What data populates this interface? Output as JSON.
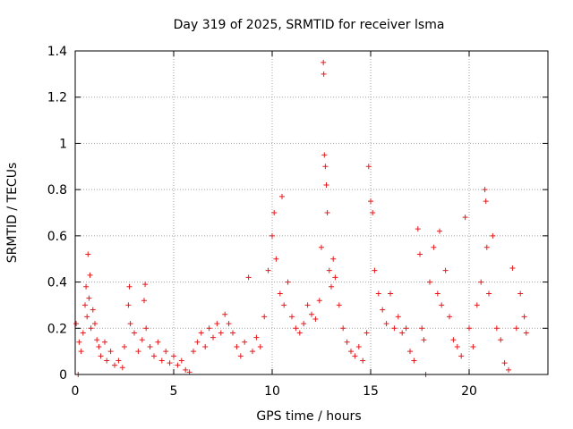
{
  "chart_data": {
    "type": "scatter",
    "title": "Day 319 of 2025, SRMTID for receiver lsma",
    "xlabel": "GPS time / hours",
    "ylabel": "SRMTID / TECUs",
    "xlim": [
      0,
      24
    ],
    "ylim": [
      0,
      1.4
    ],
    "xticks": [
      0,
      5,
      10,
      15,
      20
    ],
    "yticks": [
      0,
      0.2,
      0.4,
      0.6,
      0.8,
      1,
      1.2,
      1.4
    ],
    "ytick_labels": [
      "0",
      "0.2",
      "0.4",
      "0.6",
      "0.8",
      "1",
      "1.2",
      "1.4"
    ],
    "grid": true,
    "marker": "+",
    "series": [
      {
        "name": "SRMTID",
        "color": "#e41a1c",
        "points": [
          [
            0.05,
            0.22
          ],
          [
            0.15,
            0.0
          ],
          [
            0.2,
            0.14
          ],
          [
            0.3,
            0.1
          ],
          [
            0.4,
            0.18
          ],
          [
            0.5,
            0.3
          ],
          [
            0.55,
            0.38
          ],
          [
            0.6,
            0.25
          ],
          [
            0.65,
            0.52
          ],
          [
            0.7,
            0.33
          ],
          [
            0.75,
            0.43
          ],
          [
            0.8,
            0.2
          ],
          [
            0.9,
            0.28
          ],
          [
            1.0,
            0.22
          ],
          [
            1.1,
            0.15
          ],
          [
            1.2,
            0.12
          ],
          [
            1.3,
            0.08
          ],
          [
            1.5,
            0.14
          ],
          [
            1.6,
            0.06
          ],
          [
            1.8,
            0.1
          ],
          [
            2.0,
            0.04
          ],
          [
            2.2,
            0.06
          ],
          [
            2.4,
            0.03
          ],
          [
            2.5,
            0.12
          ],
          [
            2.7,
            0.3
          ],
          [
            2.75,
            0.38
          ],
          [
            2.8,
            0.22
          ],
          [
            3.0,
            0.18
          ],
          [
            3.2,
            0.1
          ],
          [
            3.4,
            0.15
          ],
          [
            3.5,
            0.32
          ],
          [
            3.55,
            0.39
          ],
          [
            3.6,
            0.2
          ],
          [
            3.8,
            0.12
          ],
          [
            4.0,
            0.08
          ],
          [
            4.2,
            0.14
          ],
          [
            4.4,
            0.06
          ],
          [
            4.6,
            0.1
          ],
          [
            4.8,
            0.05
          ],
          [
            5.0,
            0.08
          ],
          [
            5.2,
            0.04
          ],
          [
            5.4,
            0.06
          ],
          [
            5.6,
            0.02
          ],
          [
            5.8,
            0.01
          ],
          [
            6.0,
            0.1
          ],
          [
            6.2,
            0.14
          ],
          [
            6.4,
            0.18
          ],
          [
            6.6,
            0.12
          ],
          [
            6.8,
            0.2
          ],
          [
            7.0,
            0.16
          ],
          [
            7.2,
            0.22
          ],
          [
            7.4,
            0.18
          ],
          [
            7.6,
            0.26
          ],
          [
            7.8,
            0.22
          ],
          [
            8.0,
            0.18
          ],
          [
            8.2,
            0.12
          ],
          [
            8.4,
            0.08
          ],
          [
            8.6,
            0.14
          ],
          [
            8.8,
            0.42
          ],
          [
            9.0,
            0.1
          ],
          [
            9.2,
            0.16
          ],
          [
            9.4,
            0.12
          ],
          [
            9.6,
            0.25
          ],
          [
            9.8,
            0.45
          ],
          [
            10.0,
            0.6
          ],
          [
            10.1,
            0.7
          ],
          [
            10.2,
            0.5
          ],
          [
            10.4,
            0.35
          ],
          [
            10.5,
            0.77
          ],
          [
            10.6,
            0.3
          ],
          [
            10.8,
            0.4
          ],
          [
            11.0,
            0.25
          ],
          [
            11.2,
            0.2
          ],
          [
            11.4,
            0.18
          ],
          [
            11.6,
            0.22
          ],
          [
            11.8,
            0.3
          ],
          [
            12.0,
            0.26
          ],
          [
            12.2,
            0.24
          ],
          [
            12.4,
            0.32
          ],
          [
            12.5,
            0.55
          ],
          [
            12.6,
            1.35
          ],
          [
            12.62,
            1.3
          ],
          [
            12.65,
            0.95
          ],
          [
            12.7,
            0.9
          ],
          [
            12.75,
            0.82
          ],
          [
            12.8,
            0.7
          ],
          [
            12.9,
            0.45
          ],
          [
            13.0,
            0.38
          ],
          [
            13.1,
            0.5
          ],
          [
            13.2,
            0.42
          ],
          [
            13.4,
            0.3
          ],
          [
            13.6,
            0.2
          ],
          [
            13.8,
            0.14
          ],
          [
            14.0,
            0.1
          ],
          [
            14.2,
            0.08
          ],
          [
            14.4,
            0.12
          ],
          [
            14.6,
            0.06
          ],
          [
            14.8,
            0.18
          ],
          [
            14.9,
            0.9
          ],
          [
            15.0,
            0.75
          ],
          [
            15.1,
            0.7
          ],
          [
            15.2,
            0.45
          ],
          [
            15.4,
            0.35
          ],
          [
            15.6,
            0.28
          ],
          [
            15.8,
            0.22
          ],
          [
            16.0,
            0.35
          ],
          [
            16.2,
            0.2
          ],
          [
            16.4,
            0.25
          ],
          [
            16.6,
            0.18
          ],
          [
            16.8,
            0.2
          ],
          [
            17.0,
            0.1
          ],
          [
            17.2,
            0.06
          ],
          [
            17.4,
            0.63
          ],
          [
            17.5,
            0.52
          ],
          [
            17.6,
            0.2
          ],
          [
            17.7,
            0.15
          ],
          [
            17.8,
            0.0
          ],
          [
            18.0,
            0.4
          ],
          [
            18.2,
            0.55
          ],
          [
            18.4,
            0.35
          ],
          [
            18.5,
            0.62
          ],
          [
            18.6,
            0.3
          ],
          [
            18.8,
            0.45
          ],
          [
            19.0,
            0.25
          ],
          [
            19.2,
            0.15
          ],
          [
            19.4,
            0.12
          ],
          [
            19.6,
            0.08
          ],
          [
            19.8,
            0.68
          ],
          [
            20.0,
            0.2
          ],
          [
            20.2,
            0.12
          ],
          [
            20.4,
            0.3
          ],
          [
            20.6,
            0.4
          ],
          [
            20.8,
            0.8
          ],
          [
            20.85,
            0.75
          ],
          [
            20.9,
            0.55
          ],
          [
            21.0,
            0.35
          ],
          [
            21.2,
            0.6
          ],
          [
            21.4,
            0.2
          ],
          [
            21.6,
            0.15
          ],
          [
            21.8,
            0.05
          ],
          [
            22.0,
            0.02
          ],
          [
            22.2,
            0.46
          ],
          [
            22.4,
            0.2
          ],
          [
            22.6,
            0.35
          ],
          [
            22.8,
            0.25
          ],
          [
            22.9,
            0.18
          ]
        ]
      }
    ]
  }
}
